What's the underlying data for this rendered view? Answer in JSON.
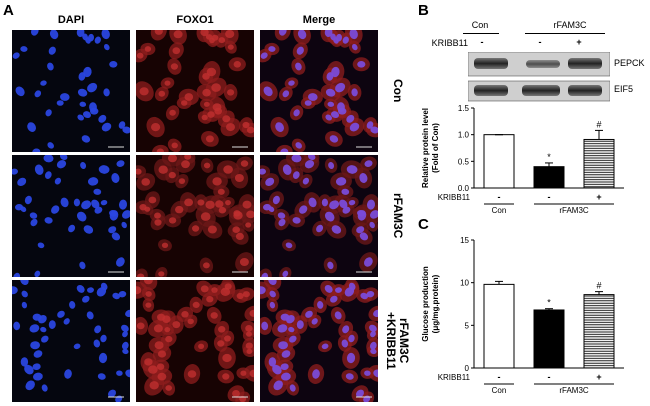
{
  "panel_labels": {
    "a": "A",
    "b": "B",
    "c": "C"
  },
  "micro": {
    "columns": [
      "DAPI",
      "FOXO1",
      "Merge"
    ],
    "rows": [
      "Con",
      "rFAM3C",
      "rFAM3C\n+KRIBB11"
    ]
  },
  "blot": {
    "group_con": "Con",
    "group_rfam": "rFAM3C",
    "kribb_label": "KRIBB11",
    "kribb_marks": [
      "-",
      "-",
      "+"
    ],
    "bands": [
      "PEPCK",
      "EIF5"
    ]
  },
  "chart_data": [
    {
      "type": "bar",
      "categories": [
        "Con",
        "rFAM3C",
        "rFAM3C +KRIBB11"
      ],
      "values": [
        1.0,
        0.4,
        0.91
      ],
      "errors": [
        0.0,
        0.07,
        0.17
      ],
      "ylabel": "Relative protein level (Fold of Con)",
      "ylim": [
        0,
        1.5
      ],
      "yticks": [
        "0.0",
        "0.5",
        "1.0",
        "1.5"
      ],
      "annotations": [
        "",
        "*",
        "#"
      ],
      "kribb_label": "KRIBB11",
      "kribb_marks": [
        "-",
        "-",
        "+"
      ],
      "group_labels": [
        "Con",
        "rFAM3C"
      ],
      "fills": [
        "#ffffff",
        "#000000",
        "hatch"
      ]
    },
    {
      "type": "bar",
      "categories": [
        "Con",
        "rFAM3C",
        "rFAM3C +KRIBB11"
      ],
      "values": [
        9.8,
        6.8,
        8.6
      ],
      "errors": [
        0.35,
        0.15,
        0.35
      ],
      "ylabel": "Glucose production (μg/mg.protein)",
      "ylim": [
        0,
        15
      ],
      "yticks": [
        "0",
        "5",
        "10",
        "15"
      ],
      "annotations": [
        "",
        "*",
        "#"
      ],
      "kribb_label": "KRIBB11",
      "kribb_marks": [
        "-",
        "-",
        "+"
      ],
      "group_labels": [
        "Con",
        "rFAM3C"
      ],
      "fills": [
        "#ffffff",
        "#000000",
        "hatch"
      ]
    }
  ]
}
